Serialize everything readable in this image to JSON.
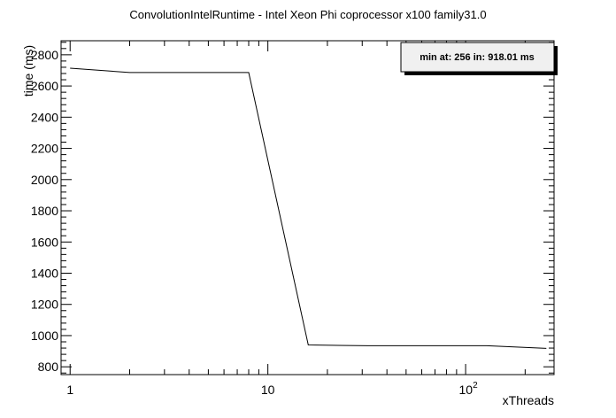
{
  "chart_data": {
    "type": "line",
    "title": "ConvolutionIntelRuntime - Intel Xeon Phi coprocessor x100 family31.0",
    "xlabel": "xThreads",
    "ylabel": "time (ms)",
    "x_scale": "log",
    "xlim": [
      0.9,
      280
    ],
    "ylim": [
      750,
      2890
    ],
    "x_tick_labels": [
      "1",
      "10",
      "10^2"
    ],
    "y_ticks": [
      800,
      1000,
      1200,
      1400,
      1600,
      1800,
      2000,
      2200,
      2400,
      2600,
      2800
    ],
    "grid": false,
    "series": [
      {
        "x": [
          1,
          2,
          4,
          8,
          16,
          32,
          64,
          128,
          256
        ],
        "y": [
          2714,
          2686,
          2686,
          2686,
          940,
          935,
          935,
          935,
          918
        ],
        "color": "#000000"
      }
    ],
    "annotation": "min at: 256 in: 918.01 ms",
    "legend_placement": "top-right"
  }
}
